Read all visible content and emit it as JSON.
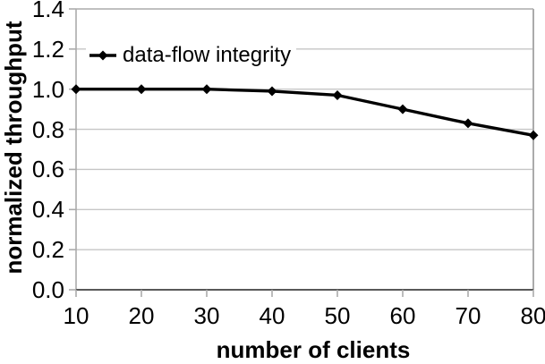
{
  "chart_data": {
    "type": "line",
    "title": "",
    "xlabel": "number of clients",
    "ylabel": "normalized throughput",
    "x": [
      10,
      20,
      30,
      40,
      50,
      60,
      70,
      80
    ],
    "series": [
      {
        "name": "data-flow integrity",
        "values": [
          1.0,
          1.0,
          1.0,
          0.99,
          0.97,
          0.9,
          0.83,
          0.77
        ],
        "color": "#000000",
        "marker": "diamond"
      }
    ],
    "xlim": [
      10,
      80
    ],
    "ylim": [
      0.0,
      1.4
    ],
    "xtick_labels": [
      "10",
      "20",
      "30",
      "40",
      "50",
      "60",
      "70",
      "80"
    ],
    "ytick_labels": [
      "0.0",
      "0.2",
      "0.4",
      "0.6",
      "0.8",
      "1.0",
      "1.2",
      "1.4"
    ],
    "grid": "horizontal-only",
    "legend_position": "inside-top-left",
    "colors": {
      "background": "#ffffff",
      "gridline": "#c6c6c6",
      "axis_light": "#ababab",
      "axis_bottom": "#595959",
      "text": "#000000"
    }
  }
}
